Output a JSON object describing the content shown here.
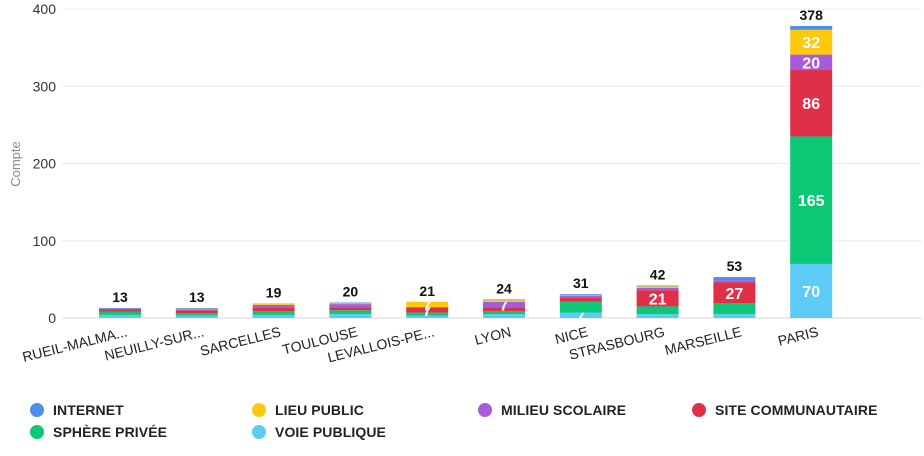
{
  "chart_data": {
    "type": "bar",
    "stacked": true,
    "ylabel": "Compte",
    "ylim": [
      0,
      400
    ],
    "yticks": [
      0,
      100,
      200,
      300,
      400
    ],
    "categories": [
      "RUEIL-MALMA...",
      "NEUILLY-SUR...",
      "SARCELLES",
      "TOULOUSE",
      "LEVALLOIS-PE...",
      "LYON",
      "NICE",
      "STRASBOURG",
      "MARSEILLE",
      "PARIS"
    ],
    "totals": [
      13,
      13,
      19,
      20,
      21,
      24,
      31,
      42,
      53,
      378
    ],
    "series": [
      {
        "name": "VOIE PUBLIQUE",
        "color": "#5ccbf5",
        "values": [
          4,
          3,
          4,
          5,
          3,
          5,
          7,
          5,
          5,
          70
        ]
      },
      {
        "name": "SPHÈRE PRIVÉE",
        "color": "#0cc776",
        "values": [
          4,
          3,
          5,
          5,
          4,
          4,
          14,
          10,
          14,
          165
        ]
      },
      {
        "name": "SITE COMMUNAUTAIRE",
        "color": "#e03048",
        "values": [
          3,
          4,
          4,
          4,
          7,
          5,
          5,
          21,
          27,
          86
        ]
      },
      {
        "name": "MILIEU SCOLAIRE",
        "color": "#a55bdb",
        "values": [
          1,
          1,
          4,
          4,
          0,
          7,
          3,
          3,
          3,
          20
        ]
      },
      {
        "name": "LIEU PUBLIC",
        "color": "#fdc90f",
        "values": [
          0,
          1,
          2,
          1,
          7,
          2,
          1,
          2,
          0,
          32
        ]
      },
      {
        "name": "INTERNET",
        "color": "#4a90e8",
        "values": [
          1,
          1,
          0,
          1,
          0,
          1,
          1,
          1,
          4,
          5
        ]
      }
    ],
    "legend": [
      {
        "name": "INTERNET",
        "color": "#4a90e8"
      },
      {
        "name": "LIEU PUBLIC",
        "color": "#fdc90f"
      },
      {
        "name": "MILIEU SCOLAIRE",
        "color": "#a55bdb"
      },
      {
        "name": "SITE COMMUNAUTAIRE",
        "color": "#e03048"
      },
      {
        "name": "SPHÈRE PRIVÉE",
        "color": "#0cc776"
      },
      {
        "name": "VOIE PUBLIQUE",
        "color": "#5ccbf5"
      }
    ],
    "legend_position": "bottom",
    "grid": true
  }
}
